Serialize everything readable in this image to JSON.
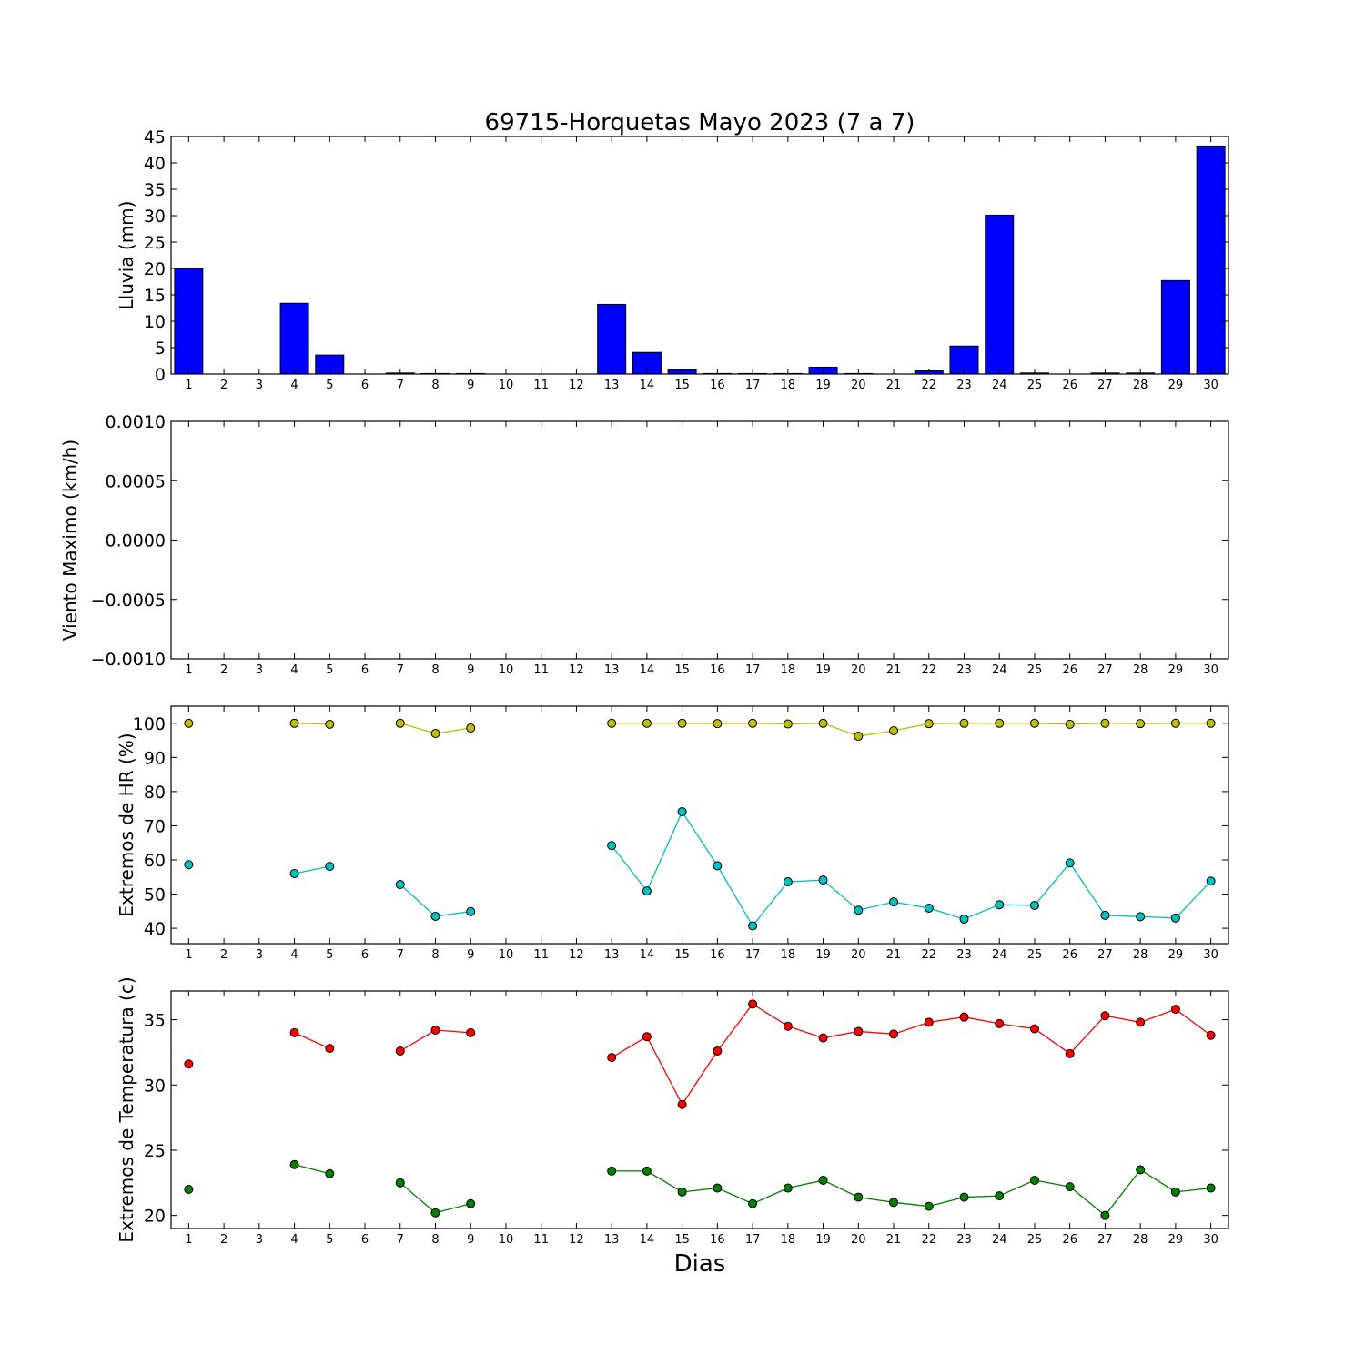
{
  "title": "69715-Horquetas Mayo 2023  (7 a 7)",
  "xlabel": "Dias",
  "chart_data": [
    {
      "type": "bar",
      "id": "rain",
      "ylabel": "Lluvia (mm)",
      "x": [
        1,
        2,
        3,
        4,
        5,
        6,
        7,
        8,
        9,
        10,
        11,
        12,
        13,
        14,
        15,
        16,
        17,
        18,
        19,
        20,
        21,
        22,
        23,
        24,
        25,
        26,
        27,
        28,
        29,
        30
      ],
      "values": [
        20.0,
        0,
        0,
        13.4,
        3.6,
        0,
        0.2,
        0.1,
        0.1,
        0,
        0,
        0,
        13.2,
        4.1,
        0.8,
        0.1,
        0.1,
        0.1,
        1.3,
        0.1,
        0,
        0.6,
        5.3,
        30.1,
        0.2,
        0,
        0.2,
        0.2,
        17.7,
        43.2
      ],
      "ylim": [
        0,
        45
      ],
      "yticks": [
        "0",
        "5",
        "10",
        "15",
        "20",
        "25",
        "30",
        "35",
        "40",
        "45"
      ],
      "colors": {
        "bar": "#0000ff"
      }
    },
    {
      "type": "line",
      "id": "wind",
      "ylabel": "Viento Maximo (km/h)",
      "x": [
        1,
        2,
        3,
        4,
        5,
        6,
        7,
        8,
        9,
        10,
        11,
        12,
        13,
        14,
        15,
        16,
        17,
        18,
        19,
        20,
        21,
        22,
        23,
        24,
        25,
        26,
        27,
        28,
        29,
        30
      ],
      "series": [],
      "ylim": [
        -0.001,
        0.001
      ],
      "yticks": [
        "−0.0010",
        "−0.0005",
        "0.0000",
        "0.0005",
        "0.0010"
      ]
    },
    {
      "type": "line",
      "id": "hr",
      "ylabel": "Extremos de HR (%)",
      "x": [
        1,
        2,
        3,
        4,
        5,
        6,
        7,
        8,
        9,
        10,
        11,
        12,
        13,
        14,
        15,
        16,
        17,
        18,
        19,
        20,
        21,
        22,
        23,
        24,
        25,
        26,
        27,
        28,
        29,
        30
      ],
      "series": [
        {
          "color": "#bfbf00",
          "values": [
            100,
            null,
            null,
            100,
            99.7,
            null,
            100,
            97,
            98.6,
            null,
            null,
            null,
            100,
            100,
            100,
            99.9,
            100,
            99.8,
            100,
            96.2,
            97.8,
            99.9,
            100,
            100,
            100,
            99.7,
            100,
            99.9,
            100,
            100
          ]
        },
        {
          "color": "#00bfbf",
          "values": [
            58.6,
            null,
            null,
            56,
            58.1,
            null,
            52.8,
            43.5,
            44.9,
            null,
            null,
            null,
            64.2,
            50.9,
            74.1,
            58.3,
            40.7,
            53.6,
            54.1,
            45.3,
            47.7,
            45.9,
            42.7,
            46.9,
            46.7,
            59.1,
            43.8,
            43.4,
            43,
            53.8
          ]
        }
      ],
      "ylim": [
        35.5,
        105
      ],
      "yticks": [
        "40",
        "50",
        "60",
        "70",
        "80",
        "90",
        "100"
      ]
    },
    {
      "type": "line",
      "id": "temp",
      "ylabel": "Extremos de Temperatura (c)",
      "x": [
        1,
        2,
        3,
        4,
        5,
        6,
        7,
        8,
        9,
        10,
        11,
        12,
        13,
        14,
        15,
        16,
        17,
        18,
        19,
        20,
        21,
        22,
        23,
        24,
        25,
        26,
        27,
        28,
        29,
        30
      ],
      "series": [
        {
          "color": "#ff0000",
          "values": [
            31.6,
            null,
            null,
            34,
            32.8,
            null,
            32.6,
            34.2,
            34,
            null,
            null,
            null,
            32.1,
            33.7,
            28.5,
            32.6,
            36.2,
            34.5,
            33.6,
            34.1,
            33.9,
            34.8,
            35.2,
            34.7,
            34.3,
            32.4,
            35.3,
            34.8,
            35.8,
            33.8
          ]
        },
        {
          "color": "#008000",
          "values": [
            22,
            null,
            null,
            23.9,
            23.2,
            null,
            22.5,
            20.2,
            20.9,
            null,
            null,
            null,
            23.4,
            23.4,
            21.8,
            22.1,
            20.9,
            22.1,
            22.7,
            21.4,
            21,
            20.7,
            21.4,
            21.5,
            22.7,
            22.2,
            20,
            23.5,
            21.8,
            22.1
          ]
        }
      ],
      "ylim": [
        19,
        37.2
      ],
      "yticks": [
        "20",
        "25",
        "30",
        "35"
      ]
    }
  ]
}
